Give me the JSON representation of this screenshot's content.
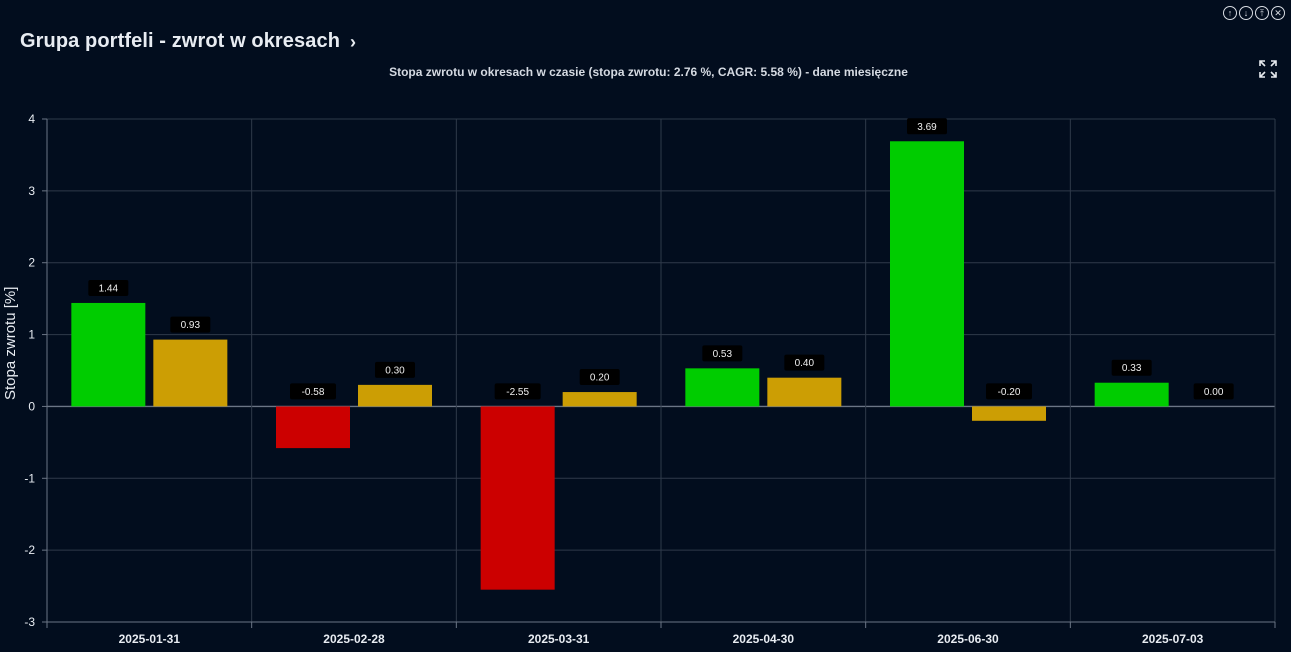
{
  "header": {
    "title": "Grupa portfeli - zwrot w okresach",
    "nav_icon": "chevron-right-icon"
  },
  "window_controls": [
    "arrow-up-circle-icon",
    "arrow-down-circle-icon",
    "arrow-top-circle-icon",
    "close-circle-icon"
  ],
  "fullscreen_icon": "expand-icon",
  "colors": {
    "background": "#020d1e",
    "positive": "#00cc00",
    "negative": "#cc0000",
    "secondary": "#cc9e04",
    "grid": "#2f3a4a",
    "label_bg": "#000000"
  },
  "chart_data": {
    "type": "bar",
    "title": "Stopa zwrotu w okresach w czasie (stopa zwrotu: 2.76 %, CAGR: 5.58 %) - dane miesięczne",
    "xlabel": "",
    "ylabel": "Stopa zwrotu [%]",
    "ylim": [
      -3,
      4
    ],
    "yticks": [
      4,
      3,
      2,
      1,
      0,
      -1,
      -2,
      -3
    ],
    "categories": [
      "2025-01-31",
      "2025-02-28",
      "2025-03-31",
      "2025-04-30",
      "2025-06-30",
      "2025-07-03"
    ],
    "series": [
      {
        "values": [
          1.44,
          -0.58,
          -2.55,
          0.53,
          3.69,
          0.33
        ],
        "labels": [
          "1.44",
          "-0.58",
          "-2.55",
          "0.53",
          "3.69",
          "0.33"
        ]
      },
      {
        "values": [
          0.93,
          0.3,
          0.2,
          0.4,
          -0.2,
          0.0
        ],
        "labels": [
          "0.93",
          "0.30",
          "0.20",
          "0.40",
          "-0.20",
          "0.00"
        ]
      }
    ],
    "grid": true,
    "legend": "none"
  }
}
